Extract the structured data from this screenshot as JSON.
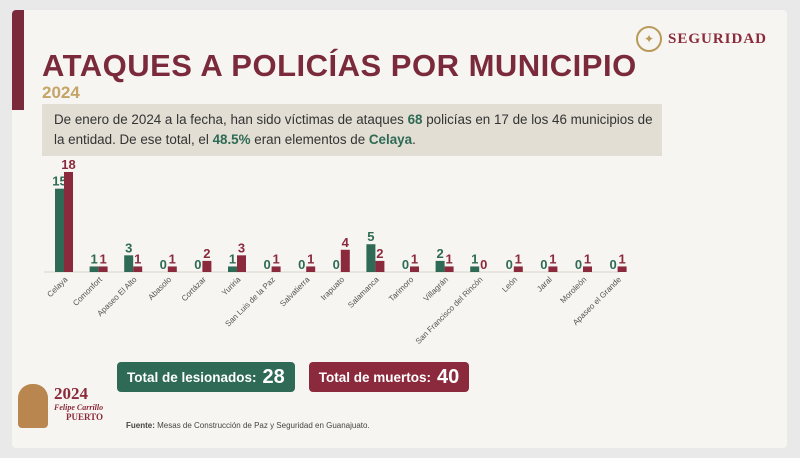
{
  "header": {
    "title": "ATAQUES A POLICÍAS POR MUNICIPIO",
    "year": "2024",
    "logo_text": "SEGURIDAD"
  },
  "summary": {
    "part1": "De enero de 2024 a la fecha, han sido víctimas de ataques ",
    "total_police": "68",
    "part2": " policías en 17 de los 46 municipios de la entidad. De ese total, el ",
    "percentage": "48.5%",
    "part3": " eran elementos de ",
    "city": "Celaya",
    "part4": "."
  },
  "colors": {
    "lesionados": "#2e6a55",
    "muertos": "#8b2a3d",
    "title": "#7a2a3a",
    "year": "#c5a467"
  },
  "chart_data": {
    "type": "bar",
    "categories": [
      "Celaya",
      "Comonfort",
      "Apaseo El Alto",
      "Abasolo",
      "Cortázar",
      "Yuriria",
      "San Luis de la Paz",
      "Salvatierra",
      "Irapuato",
      "Salamanca",
      "Tarimoro",
      "Villagrán",
      "San Francisco del Rincón",
      "León",
      "Jaral",
      "Moroleón",
      "Apaseo el Grande"
    ],
    "series": [
      {
        "name": "Total de lesionados",
        "values": [
          15,
          1,
          3,
          0,
          0,
          1,
          0,
          0,
          0,
          5,
          0,
          2,
          1,
          0,
          0,
          0,
          0
        ]
      },
      {
        "name": "Total de muertos",
        "values": [
          18,
          1,
          1,
          1,
          2,
          3,
          1,
          1,
          4,
          2,
          1,
          1,
          0,
          1,
          1,
          1,
          1
        ]
      }
    ],
    "ylim": [
      0,
      18
    ]
  },
  "totals": {
    "lesionados_label": "Total de lesionados:",
    "lesionados_value": "28",
    "muertos_label": "Total de muertos:",
    "muertos_value": "40"
  },
  "brand": {
    "year": "2024",
    "name1": "Felipe Carrillo",
    "name2": "PUERTO"
  },
  "source": {
    "label": "Fuente:",
    "text": "Mesas de Construcción de Paz y Seguridad en Guanajuato."
  }
}
